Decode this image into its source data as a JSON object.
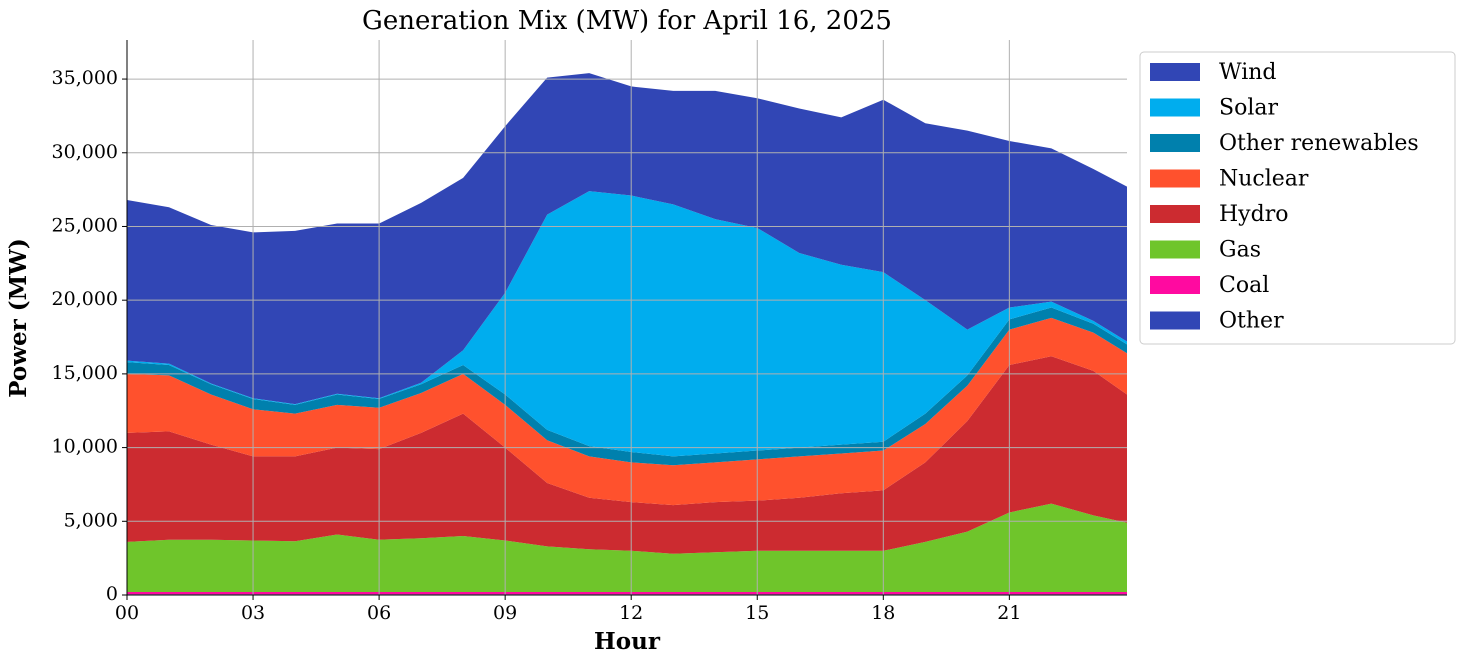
{
  "chart_data": {
    "type": "stacked_area",
    "title": "Generation Mix (MW) for April 16, 2025",
    "xlabel": "Hour",
    "ylabel": "Power (MW)",
    "x": [
      0,
      1,
      2,
      3,
      4,
      5,
      6,
      7,
      8,
      9,
      10,
      11,
      12,
      13,
      14,
      15,
      16,
      17,
      18,
      19,
      20,
      21,
      22,
      23,
      23.8
    ],
    "xlim": [
      0,
      23.8
    ],
    "xticks": [
      {
        "value": 0,
        "label": "00"
      },
      {
        "value": 3,
        "label": "03"
      },
      {
        "value": 6,
        "label": "06"
      },
      {
        "value": 9,
        "label": "09"
      },
      {
        "value": 12,
        "label": "12"
      },
      {
        "value": 15,
        "label": "15"
      },
      {
        "value": 18,
        "label": "18"
      },
      {
        "value": 21,
        "label": "21"
      }
    ],
    "ylim": [
      0,
      37650
    ],
    "yticks": [
      0,
      {
        "value": 5000,
        "label": "5,000"
      },
      {
        "value": 10000,
        "label": "10,000"
      },
      {
        "value": 15000,
        "label": "15,000"
      },
      {
        "value": 20000,
        "label": "20,000"
      },
      {
        "value": 25000,
        "label": "25,000"
      },
      {
        "value": 30000,
        "label": "30,000"
      },
      {
        "value": 35000,
        "label": "35,000"
      }
    ],
    "grid": true,
    "legend": "outside right",
    "series": [
      {
        "name": "Wind",
        "color": "#3146b5",
        "values": [
          10900,
          10600,
          10750,
          11250,
          11750,
          11550,
          11850,
          12200,
          11700,
          11300,
          9300,
          8000,
          7400,
          7700,
          8700,
          8800,
          9800,
          10000,
          11700,
          12000,
          13500,
          11300,
          10400,
          10300,
          10500
        ]
      },
      {
        "name": "Solar",
        "color": "#00adee",
        "values": [
          100,
          100,
          50,
          50,
          50,
          50,
          50,
          100,
          1000,
          6900,
          14600,
          17300,
          17400,
          17100,
          15900,
          15100,
          13200,
          12200,
          11500,
          7700,
          3100,
          800,
          400,
          200,
          200
        ]
      },
      {
        "name": "Other renewables",
        "color": "#0080ad",
        "values": [
          800,
          700,
          700,
          700,
          600,
          700,
          600,
          600,
          600,
          700,
          700,
          700,
          700,
          600,
          600,
          600,
          600,
          600,
          600,
          700,
          700,
          700,
          700,
          600,
          600
        ]
      },
      {
        "name": "Nuclear",
        "color": "#ff512d",
        "values": [
          4000,
          3800,
          3400,
          3200,
          2900,
          2900,
          2800,
          2700,
          2700,
          2900,
          2900,
          2800,
          2700,
          2700,
          2700,
          2800,
          2800,
          2700,
          2700,
          2600,
          2400,
          2400,
          2600,
          2600,
          2800
        ]
      },
      {
        "name": "Hydro",
        "color": "#cc2b30",
        "values": [
          7400,
          7350,
          6450,
          5700,
          5750,
          5900,
          6150,
          7150,
          8300,
          6300,
          4300,
          3500,
          3300,
          3300,
          3400,
          3400,
          3600,
          3900,
          4100,
          5400,
          7500,
          10000,
          10000,
          9800,
          8700
        ]
      },
      {
        "name": "Gas",
        "color": "#6fc52b",
        "values": [
          3400,
          3550,
          3550,
          3500,
          3450,
          3900,
          3550,
          3650,
          3800,
          3500,
          3100,
          2900,
          2800,
          2600,
          2700,
          2800,
          2800,
          2800,
          2800,
          3400,
          4100,
          5400,
          6000,
          5200,
          4700
        ]
      },
      {
        "name": "Coal",
        "color": "#ff0aa0",
        "values": [
          150,
          150,
          150,
          150,
          150,
          150,
          150,
          150,
          150,
          150,
          150,
          150,
          150,
          150,
          150,
          150,
          150,
          150,
          150,
          150,
          150,
          150,
          150,
          150,
          150
        ]
      },
      {
        "name": "Other",
        "color": "#3146b5",
        "values": [
          50,
          50,
          50,
          50,
          50,
          50,
          50,
          50,
          50,
          50,
          50,
          50,
          50,
          50,
          50,
          50,
          50,
          50,
          50,
          50,
          50,
          50,
          50,
          50,
          50
        ]
      }
    ]
  }
}
